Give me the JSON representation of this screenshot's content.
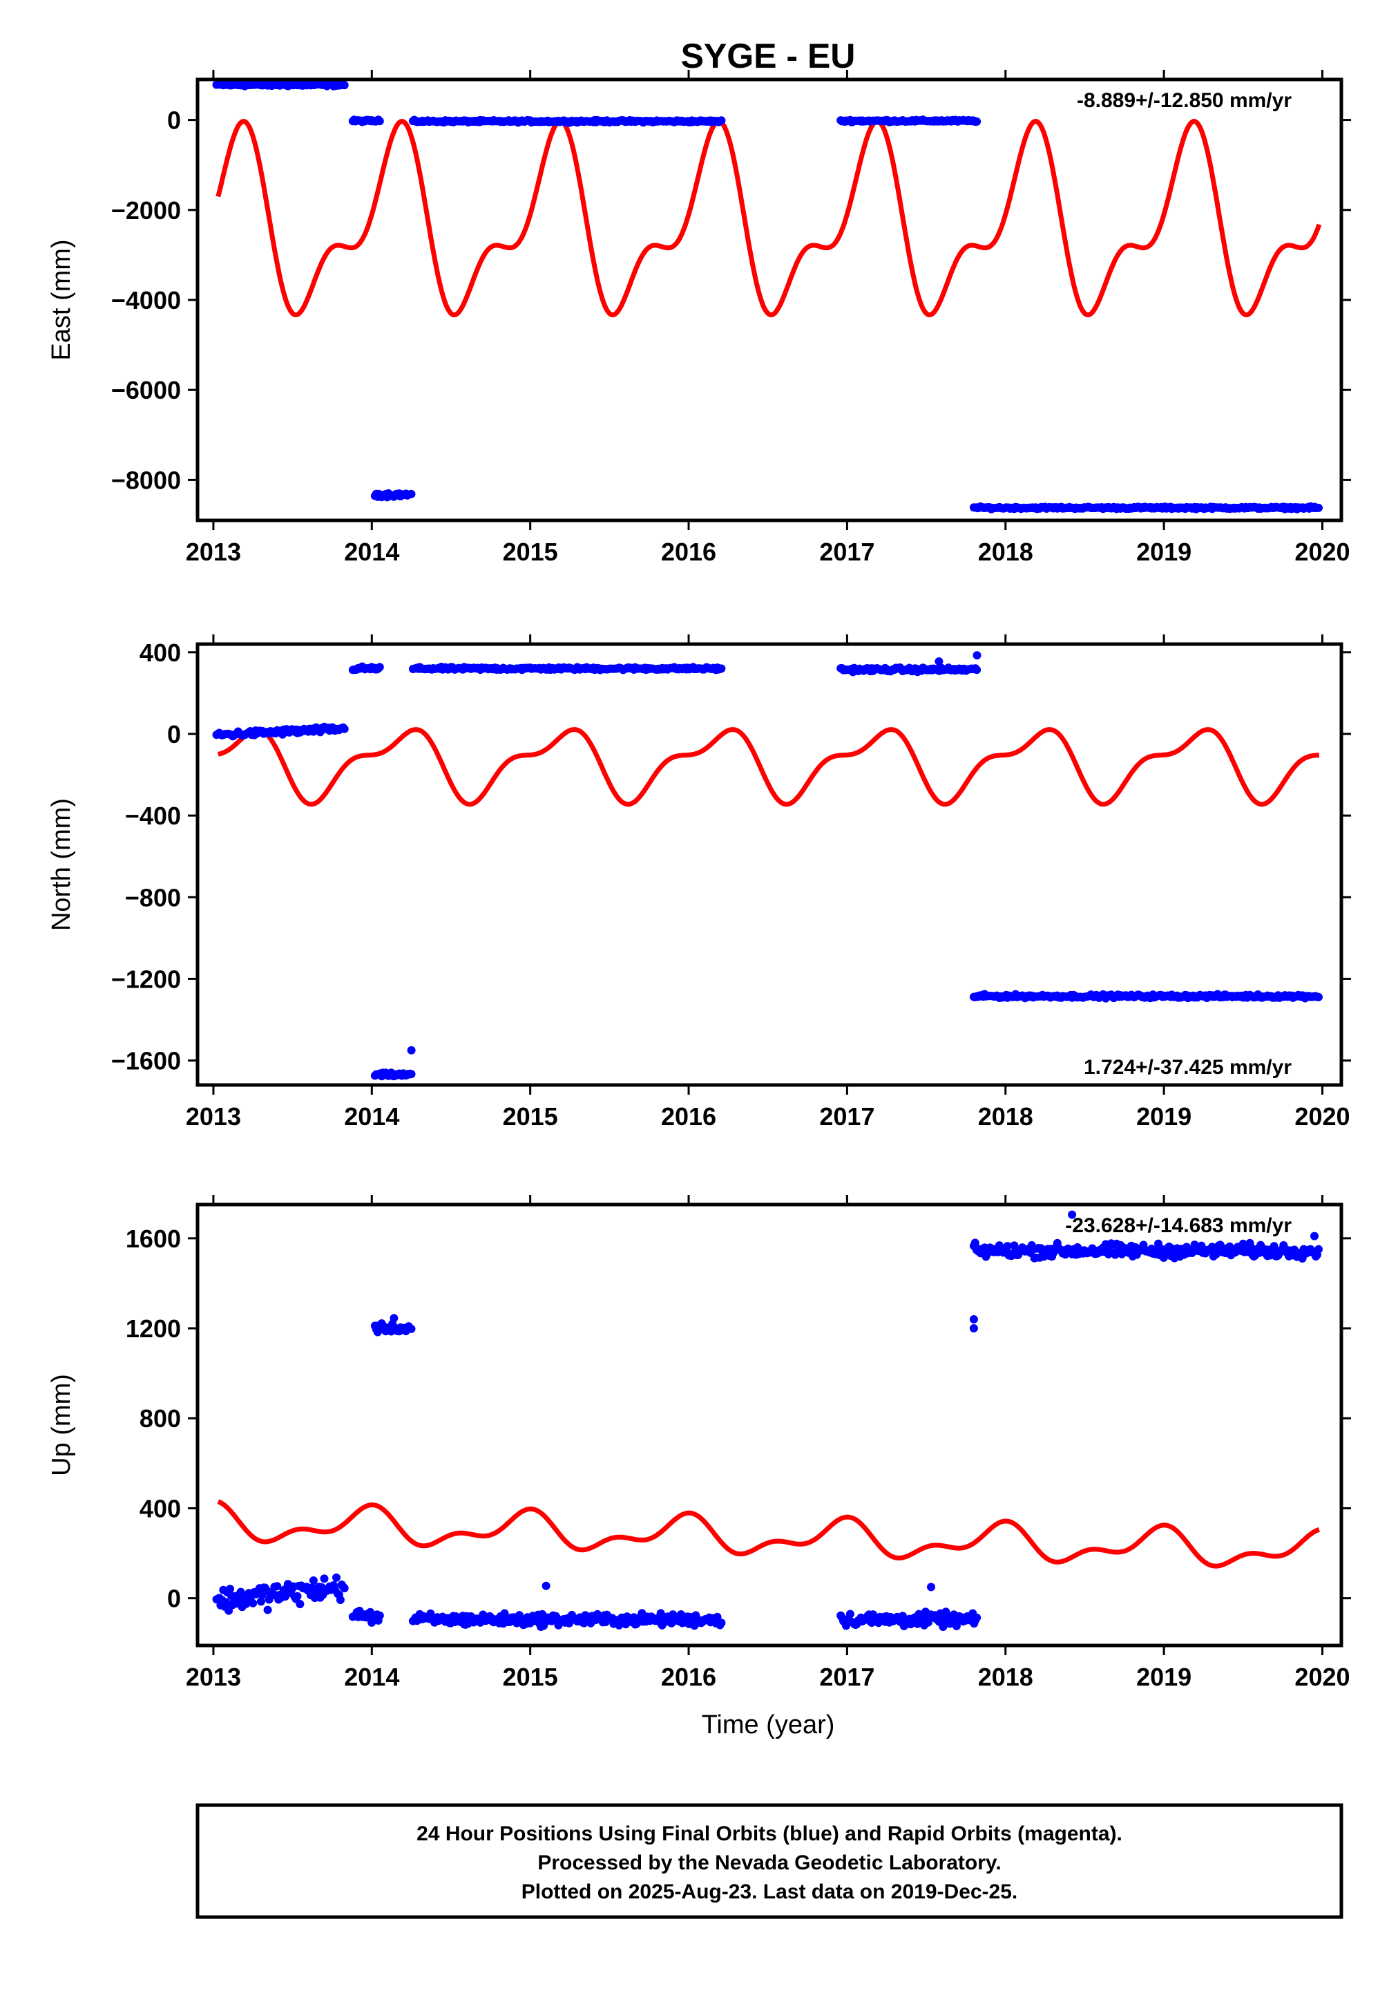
{
  "title": "SYGE - EU",
  "xlabel": "Time (year)",
  "colors": {
    "final_orbits": "#0000ff",
    "model": "#ff0000",
    "axes": "#000000"
  },
  "footer": [
    "24 Hour Positions Using Final Orbits (blue) and Rapid Orbits (magenta).",
    "Processed by the Nevada Geodetic Laboratory.",
    "Plotted on 2025-Aug-23. Last data on 2019-Dec-25."
  ],
  "chart_data": [
    {
      "type": "scatter",
      "ylabel": "East (mm)",
      "rate": "-8.889+/-12.850 mm/yr",
      "rate_position": "top-right",
      "xlim": [
        2012.9,
        2020.12
      ],
      "ylim": [
        -8900,
        900
      ],
      "xticks": [
        2013,
        2014,
        2015,
        2016,
        2017,
        2018,
        2019,
        2020
      ],
      "yticks": [
        0,
        -2000,
        -4000,
        -6000,
        -8000
      ],
      "ytick_labels": [
        "0",
        "−2000",
        "−4000",
        "−6000",
        "−8000"
      ],
      "grid": false,
      "series": [
        {
          "color": "#0000ff",
          "segments": [
            {
              "x": [
                2013.02,
                2013.83
              ],
              "y": 780,
              "jitter": 25
            },
            {
              "x": [
                2013.88,
                2014.05
              ],
              "y": -20,
              "jitter": 20
            },
            {
              "x": [
                2014.02,
                2014.25
              ],
              "y": -8330,
              "jitter": 40
            },
            {
              "x": [
                2014.26,
                2016.21
              ],
              "y": -30,
              "jitter": 20
            },
            {
              "x": [
                2016.96,
                2017.82
              ],
              "y": -20,
              "jitter": 20
            },
            {
              "x": [
                2017.8,
                2019.98
              ],
              "y": -8620,
              "jitter": 20
            }
          ]
        },
        {
          "color": "#ff0000",
          "model": {
            "x": [
              2013.03,
              2019.98
            ],
            "offset": -2400,
            "annual": [
              1230,
              1100
            ],
            "semiannual": [
              350,
              -800
            ]
          }
        }
      ]
    },
    {
      "type": "scatter",
      "ylabel": "North (mm)",
      "rate": "1.724+/-37.425 mm/yr",
      "rate_position": "bottom-right",
      "xlim": [
        2012.9,
        2020.12
      ],
      "ylim": [
        -1720,
        440
      ],
      "xticks": [
        2013,
        2014,
        2015,
        2016,
        2017,
        2018,
        2019,
        2020
      ],
      "yticks": [
        400,
        0,
        -400,
        -800,
        -1200,
        -1600
      ],
      "ytick_labels": [
        "400",
        "0",
        "−400",
        "−800",
        "−1200",
        "−1600"
      ],
      "grid": false,
      "series": [
        {
          "color": "#0000ff",
          "segments": [
            {
              "x": [
                2013.02,
                2013.83
              ],
              "y": 10,
              "jitter": 12,
              "trend": 30
            },
            {
              "x": [
                2013.88,
                2014.05
              ],
              "y": 320,
              "jitter": 8
            },
            {
              "x": [
                2014.02,
                2014.25
              ],
              "y": -1670,
              "jitter": 8
            },
            {
              "x": [
                2014.26,
                2016.21
              ],
              "y": 320,
              "jitter": 6
            },
            {
              "x": [
                2016.96,
                2017.82
              ],
              "y": 315,
              "jitter": 8
            },
            {
              "x": [
                2017.8,
                2019.98
              ],
              "y": -1285,
              "jitter": 7
            }
          ],
          "outliers": [
            [
              2014.25,
              -1550
            ],
            [
              2017.82,
              385
            ],
            [
              2017.58,
              355
            ]
          ]
        },
        {
          "color": "#ff0000",
          "model": {
            "x": [
              2013.03,
              2019.98
            ],
            "offset": -143,
            "annual": [
              130,
              70
            ],
            "semiannual": [
              -60,
              -30
            ]
          }
        }
      ]
    },
    {
      "type": "scatter",
      "ylabel": "Up (mm)",
      "rate": "-23.628+/-14.683 mm/yr",
      "rate_position": "top-right",
      "xlim": [
        2012.9,
        2020.12
      ],
      "ylim": [
        -210,
        1750
      ],
      "xticks": [
        2013,
        2014,
        2015,
        2016,
        2017,
        2018,
        2019,
        2020
      ],
      "xtick_labels": [
        "2013",
        "2014",
        "2015",
        "2016",
        "2017",
        "2018",
        "2019",
        "2020"
      ],
      "yticks": [
        0,
        400,
        800,
        1200,
        1600
      ],
      "ytick_labels": [
        "0",
        "400",
        "800",
        "1200",
        "1600"
      ],
      "grid": false,
      "series": [
        {
          "color": "#0000ff",
          "segments": [
            {
              "x": [
                2013.02,
                2013.83
              ],
              "y": 20,
              "jitter": 45,
              "trend": 60
            },
            {
              "x": [
                2013.88,
                2014.05
              ],
              "y": -80,
              "jitter": 25
            },
            {
              "x": [
                2014.02,
                2014.25
              ],
              "y": 1200,
              "jitter": 15
            },
            {
              "x": [
                2014.26,
                2016.21
              ],
              "y": -95,
              "jitter": 22
            },
            {
              "x": [
                2016.96,
                2017.82
              ],
              "y": -95,
              "jitter": 25
            },
            {
              "x": [
                2017.8,
                2019.98
              ],
              "y": 1545,
              "jitter": 25
            }
          ],
          "outliers": [
            [
              2014.14,
              1245
            ],
            [
              2017.8,
              1240
            ],
            [
              2017.8,
              1200
            ],
            [
              2018.42,
              1705
            ],
            [
              2017.53,
              50
            ],
            [
              2015.1,
              55
            ],
            [
              2019.95,
              1610
            ]
          ]
        },
        {
          "color": "#ff0000",
          "model": {
            "x": [
              2013.03,
              2019.98
            ],
            "offset": 270,
            "trend": -18,
            "annual": [
              -18,
              62
            ],
            "semiannual": [
              12,
              38
            ]
          }
        }
      ]
    }
  ]
}
